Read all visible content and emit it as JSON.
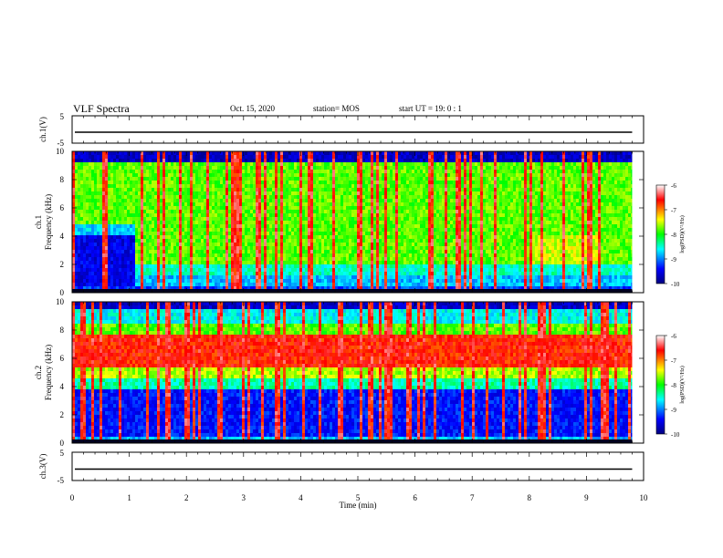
{
  "header": {
    "title": "VLF Spectra",
    "date": "Oct. 15, 2020",
    "station": "station= MOS",
    "start": "start  UT  =   19: 0  : 1"
  },
  "chart_data": [
    {
      "type": "line",
      "panel": "ch1-waveform",
      "ylabel": "ch.1(V)",
      "ylim": [
        -5,
        5
      ],
      "yticks": [
        "5",
        "-5"
      ],
      "series": [
        {
          "values_description_free": true,
          "x": [
            0,
            9.8
          ],
          "y": [
            0,
            0
          ]
        }
      ]
    },
    {
      "type": "heatmap",
      "panel": "ch1-spectrogram",
      "ylabel": "ch.1\nFrequency (kHz)",
      "ylim": [
        0,
        10
      ],
      "yticks": [
        "0",
        "2",
        "4",
        "6",
        "8",
        "10"
      ],
      "colorbar": {
        "label": "log(PSD)(V²/Hz)",
        "range": [
          -10,
          -6
        ],
        "ticks": [
          "-6",
          "-7",
          "-8",
          "-9",
          "-10"
        ]
      }
    },
    {
      "type": "heatmap",
      "panel": "ch2-spectrogram",
      "ylabel": "ch.2\nFrequency (kHz)",
      "ylim": [
        0,
        10
      ],
      "yticks": [
        "0",
        "2",
        "4",
        "6",
        "8",
        "10"
      ],
      "colorbar": {
        "label": "log(PSD)(V²/Hz)",
        "range": [
          -10,
          -6
        ],
        "ticks": [
          "-6",
          "-7",
          "-8",
          "-9",
          "-10"
        ]
      }
    },
    {
      "type": "line",
      "panel": "ch3-waveform",
      "ylabel": "ch.3(V)",
      "ylim": [
        -5,
        5
      ],
      "yticks": [
        "5",
        "-5"
      ],
      "series": [
        {
          "x": [
            0,
            9.8
          ],
          "y": [
            0,
            0
          ]
        }
      ]
    }
  ],
  "xaxis": {
    "label": "Time (min)",
    "xlim": [
      0,
      10
    ],
    "ticks": [
      "0",
      "1",
      "2",
      "3",
      "4",
      "5",
      "6",
      "7",
      "8",
      "9",
      "10"
    ]
  },
  "colors": {
    "colormap": [
      "#000080",
      "#0000ff",
      "#00ffff",
      "#00ff00",
      "#ffff00",
      "#ff0000",
      "#ffffff"
    ]
  }
}
